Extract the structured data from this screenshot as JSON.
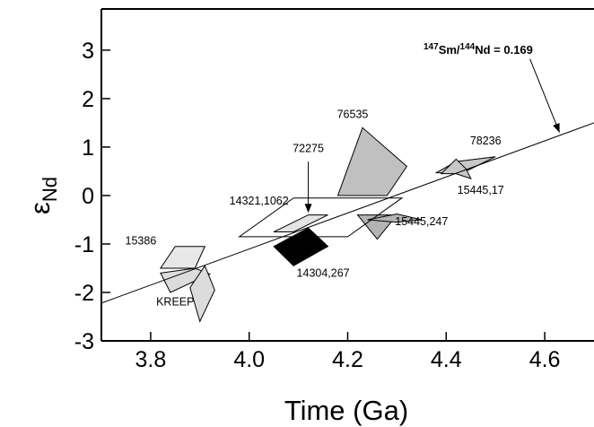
{
  "chart_data": {
    "type": "scatter",
    "xlabel": "Time (Ga)",
    "ylabel": {
      "main": "ε",
      "sub": "Nd"
    },
    "xlim": [
      3.7,
      4.7
    ],
    "ylim": [
      -3,
      3.85
    ],
    "xticks": [
      3.8,
      4.0,
      4.2,
      4.4,
      4.6
    ],
    "xtick_labels": [
      "3.8",
      "4.0",
      "4.2",
      "4.4",
      "4.6"
    ],
    "yticks": [
      -3,
      -2,
      -1,
      0,
      1,
      2,
      3
    ],
    "ytick_labels": [
      "-3",
      "-2",
      "-1",
      "0",
      "1",
      "2",
      "3"
    ],
    "grid": false,
    "isochron": {
      "label": {
        "sup1": "147",
        "t1": "Sm/",
        "sup2": "144",
        "t2": "Nd = 0.169"
      },
      "points": [
        [
          3.7,
          -2.22
        ],
        [
          4.7,
          1.5
        ]
      ],
      "arrow_from": [
        4.57,
        2.82
      ],
      "arrow_to": [
        4.63,
        1.3
      ]
    },
    "samples": [
      {
        "name": "76535",
        "color": "#c0c0c0",
        "polygon": [
          [
            4.18,
            0.0
          ],
          [
            4.23,
            1.4
          ],
          [
            4.32,
            0.6
          ],
          [
            4.28,
            0.0
          ]
        ],
        "label": "76535",
        "label_pos": [
          4.21,
          1.6
        ]
      },
      {
        "name": "78236",
        "color": "#c8c8c8",
        "polygon": [
          [
            4.38,
            0.47
          ],
          [
            4.42,
            0.7
          ],
          [
            4.5,
            0.8
          ],
          [
            4.43,
            0.45
          ]
        ],
        "label": "78236",
        "label_pos": [
          4.48,
          1.05
        ]
      },
      {
        "name": "15445,17",
        "color": "#c8c8c8",
        "polygon": [
          [
            4.39,
            0.45
          ],
          [
            4.42,
            0.75
          ],
          [
            4.44,
            0.55
          ],
          [
            4.45,
            0.35
          ],
          [
            4.42,
            0.45
          ]
        ],
        "label": "15445,17",
        "label_pos": [
          4.47,
          0.04
        ]
      },
      {
        "name": "15445,247",
        "color": "#b4b4b4",
        "polygon": [
          [
            4.22,
            -0.4
          ],
          [
            4.26,
            -0.9
          ],
          [
            4.3,
            -0.4
          ]
        ],
        "label": "15445,247",
        "label_pos": [
          4.35,
          -0.61
        ]
      },
      {
        "name": "15445,247b",
        "color": "#b4b4b4",
        "polygon": [
          [
            4.24,
            -0.5
          ],
          [
            4.3,
            -0.55
          ],
          [
            4.35,
            -0.5
          ],
          [
            4.3,
            -0.38
          ]
        ],
        "label": "",
        "label_pos": null
      },
      {
        "name": "14321,1062",
        "color": "none",
        "polygon": [
          [
            3.98,
            -0.85
          ],
          [
            4.09,
            -0.05
          ],
          [
            4.31,
            -0.05
          ],
          [
            4.2,
            -0.85
          ]
        ],
        "label": "14321,1062",
        "label_pos": [
          4.02,
          -0.19
        ]
      },
      {
        "name": "72275",
        "color": "#e4e4e4",
        "polygon": [
          [
            4.05,
            -0.75
          ],
          [
            4.12,
            -0.4
          ],
          [
            4.16,
            -0.4
          ],
          [
            4.09,
            -0.75
          ]
        ],
        "label": "72275",
        "label_pos": [
          4.12,
          0.9
        ]
      },
      {
        "name": "14304,267",
        "color": "#000000",
        "polygon": [
          [
            4.05,
            -1.05
          ],
          [
            4.09,
            -1.45
          ],
          [
            4.16,
            -1.05
          ],
          [
            4.12,
            -0.67
          ]
        ],
        "label": "14304,267",
        "label_pos": [
          4.15,
          -1.68
        ]
      },
      {
        "name": "15386",
        "color": "#e8e8e8",
        "polygon": [
          [
            3.82,
            -1.5
          ],
          [
            3.85,
            -1.05
          ],
          [
            3.91,
            -1.05
          ],
          [
            3.89,
            -1.5
          ]
        ],
        "label": "15386",
        "label_pos": [
          3.78,
          -1.01
        ]
      },
      {
        "name": "KREEP",
        "color": "#dcdcdc",
        "polygon": [
          [
            3.82,
            -1.6
          ],
          [
            3.89,
            -1.5
          ],
          [
            3.92,
            -1.62
          ],
          [
            3.84,
            -2.0
          ]
        ],
        "label": "KREEP",
        "label_pos": [
          3.85,
          -2.27
        ]
      },
      {
        "name": "KREEP2",
        "color": "#dcdcdc",
        "polygon": [
          [
            3.88,
            -1.9
          ],
          [
            3.91,
            -1.45
          ],
          [
            3.93,
            -1.95
          ],
          [
            3.9,
            -2.6
          ]
        ],
        "label": "",
        "label_pos": null
      }
    ]
  }
}
